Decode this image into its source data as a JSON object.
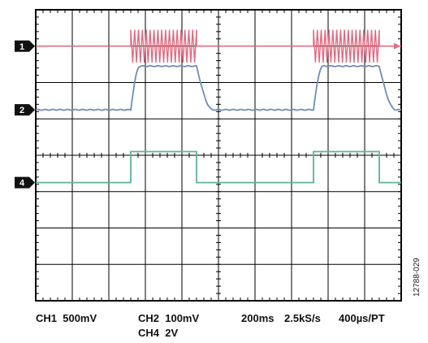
{
  "chart_data": {
    "type": "line",
    "grid": true,
    "divisions": {
      "x": 10,
      "y": 8
    },
    "channels": [
      {
        "id": "1",
        "color": "#e26a80",
        "scale": "500mV",
        "marker_division": 1.0,
        "low": 0.0,
        "high": 0.0,
        "burst_amplitude_div": 0.45,
        "note": "burst"
      },
      {
        "id": "2",
        "color": "#6f8db6",
        "scale": "100mV",
        "marker_division": 2.75,
        "low": 0.0,
        "high": 1.2
      },
      {
        "id": "4",
        "color": "#5fb394",
        "scale": "2V",
        "marker_division": 4.75,
        "low": 0.0,
        "high": 0.85
      }
    ],
    "pulses": [
      {
        "start_div": 2.6,
        "end_div": 4.4
      },
      {
        "start_div": 7.6,
        "end_div": 9.4
      }
    ]
  },
  "settings": {
    "ch1": "CH1  500mV",
    "ch2": "CH2  100mV",
    "ch4": "CH4  2V",
    "time": "200ms",
    "rate": "2.5kS/s",
    "pt": "400µs/PT"
  },
  "figure_id": "12788-029"
}
